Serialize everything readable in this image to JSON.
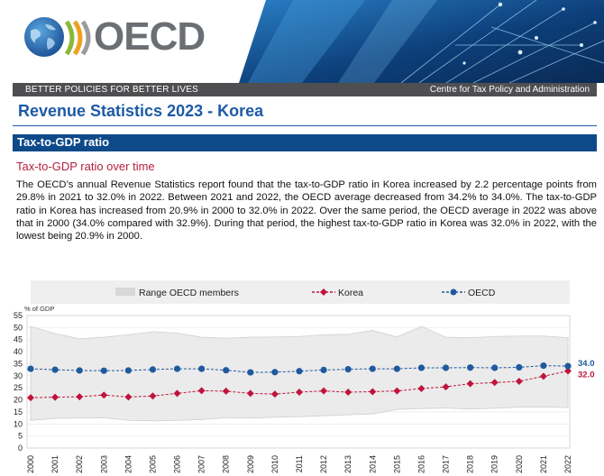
{
  "header": {
    "logo_text": "OECD",
    "tagline": "BETTER POLICIES FOR BETTER LIVES",
    "centre": "Centre for Tax Policy and Administration"
  },
  "document": {
    "title": "Revenue Statistics 2023 - Korea",
    "section": "Tax-to-GDP ratio",
    "subsection": "Tax-to-GDP ratio over time",
    "paragraph": "The OECD’s annual Revenue Statistics report found that the tax-to-GDP ratio in Korea increased by 2.2 percentage points from 29.8% in 2021 to 32.0% in 2022. Between 2021 and 2022, the OECD average decreased from 34.2% to 34.0%. The tax-to-GDP ratio in Korea has increased from 20.9% in 2000 to 32.0% in 2022. Over the same period, the OECD average in 2022 was above that in 2000 (34.0% compared with 32.9%). During that period, the highest tax-to-GDP ratio in Korea was 32.0% in 2022, with the lowest being 20.9% in 2000."
  },
  "colors": {
    "brand_blue": "#1d5aa6",
    "section_blue": "#0e4a8a",
    "accent_red": "#b5203d",
    "korea_line": "#c0143c",
    "oecd_line": "#1f5a9e",
    "range_fill": "#ebebeb"
  },
  "chart_data": {
    "type": "line",
    "ylabel": "% of GDP",
    "ylim": [
      0,
      55
    ],
    "yticks": [
      0,
      5,
      10,
      15,
      20,
      25,
      30,
      35,
      40,
      45,
      50,
      55
    ],
    "categories": [
      "2000",
      "2001",
      "2002",
      "2003",
      "2004",
      "2005",
      "2006",
      "2007",
      "2008",
      "2009",
      "2010",
      "2011",
      "2012",
      "2013",
      "2014",
      "2015",
      "2016",
      "2017",
      "2018",
      "2019",
      "2020",
      "2021",
      "2022"
    ],
    "legend": {
      "range_label": "Range OECD members",
      "korea_label": "Korea",
      "oecd_label": "OECD"
    },
    "range_oecd_members": {
      "low": [
        11.5,
        12.3,
        12.5,
        12.6,
        11.5,
        11.3,
        11.5,
        11.8,
        12.6,
        12.4,
        12.8,
        13.0,
        13.4,
        13.8,
        14.2,
        16.0,
        16.4,
        16.6,
        16.2,
        16.5,
        17.0,
        17.1,
        16.8
      ],
      "high": [
        50.5,
        47.5,
        45.3,
        46.0,
        47.0,
        48.3,
        47.7,
        46.0,
        45.6,
        46.0,
        46.1,
        46.3,
        47.0,
        47.2,
        48.8,
        46.1,
        50.5,
        46.0,
        45.8,
        46.3,
        46.5,
        46.5,
        45.8
      ]
    },
    "series": [
      {
        "name": "Korea",
        "values": [
          20.9,
          21.1,
          21.3,
          22.0,
          21.2,
          21.6,
          22.7,
          23.8,
          23.6,
          22.7,
          22.4,
          23.2,
          23.7,
          23.2,
          23.4,
          23.7,
          24.7,
          25.4,
          26.7,
          27.2,
          27.7,
          29.8,
          32.0
        ],
        "end_label": "32.0"
      },
      {
        "name": "OECD",
        "values": [
          32.9,
          32.5,
          32.2,
          32.1,
          32.2,
          32.6,
          32.9,
          32.9,
          32.3,
          31.4,
          31.5,
          31.9,
          32.4,
          32.7,
          32.9,
          32.9,
          33.3,
          33.3,
          33.4,
          33.3,
          33.5,
          34.2,
          34.0
        ],
        "end_label": "34.0"
      }
    ]
  }
}
